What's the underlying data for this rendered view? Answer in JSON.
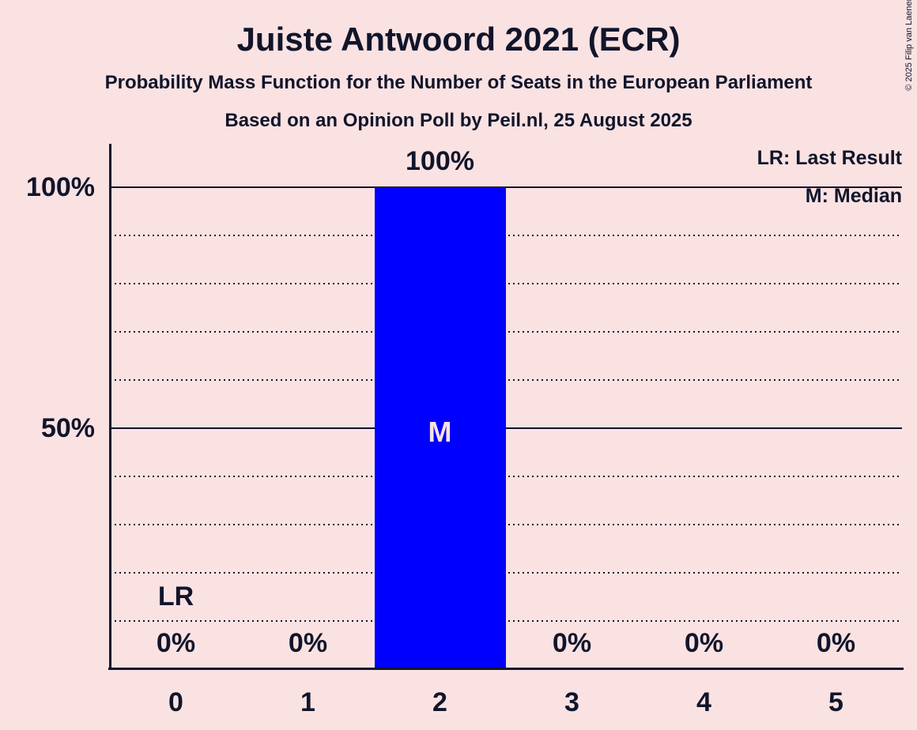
{
  "title": "Juiste Antwoord 2021 (ECR)",
  "subtitles": {
    "line1": "Probability Mass Function for the Number of Seats in the European Parliament",
    "line2": "Based on an Opinion Poll by Peil.nl, 25 August 2025"
  },
  "copyright": "© 2025 Filip van Laenen",
  "legend": {
    "last_result": "LR: Last Result",
    "median": "M: Median"
  },
  "colors": {
    "background": "#fae2e2",
    "bar": "#0000ff",
    "text": "#11152b",
    "median_label": "#fae2e2"
  },
  "chart_data": {
    "type": "bar",
    "title": "Probability Mass Function for the Number of Seats in the European Parliament",
    "xlabel": "",
    "ylabel": "",
    "categories": [
      "0",
      "1",
      "2",
      "3",
      "4",
      "5"
    ],
    "values": [
      0,
      0,
      100,
      0,
      0,
      0
    ],
    "value_labels": [
      "0%",
      "0%",
      "100%",
      "0%",
      "0%",
      "0%"
    ],
    "ylim": [
      0,
      100
    ],
    "y_ticks": [
      {
        "value": 100,
        "label": "100%"
      },
      {
        "value": 50,
        "label": "50%"
      }
    ],
    "solid_gridlines": [
      100,
      50
    ],
    "dotted_gridlines": [
      90,
      80,
      70,
      60,
      40,
      30,
      20,
      10
    ],
    "grid": "on",
    "legend_position": "top-right",
    "last_result": {
      "index": 0,
      "label": "LR"
    },
    "median": {
      "index": 2,
      "label": "M"
    }
  }
}
